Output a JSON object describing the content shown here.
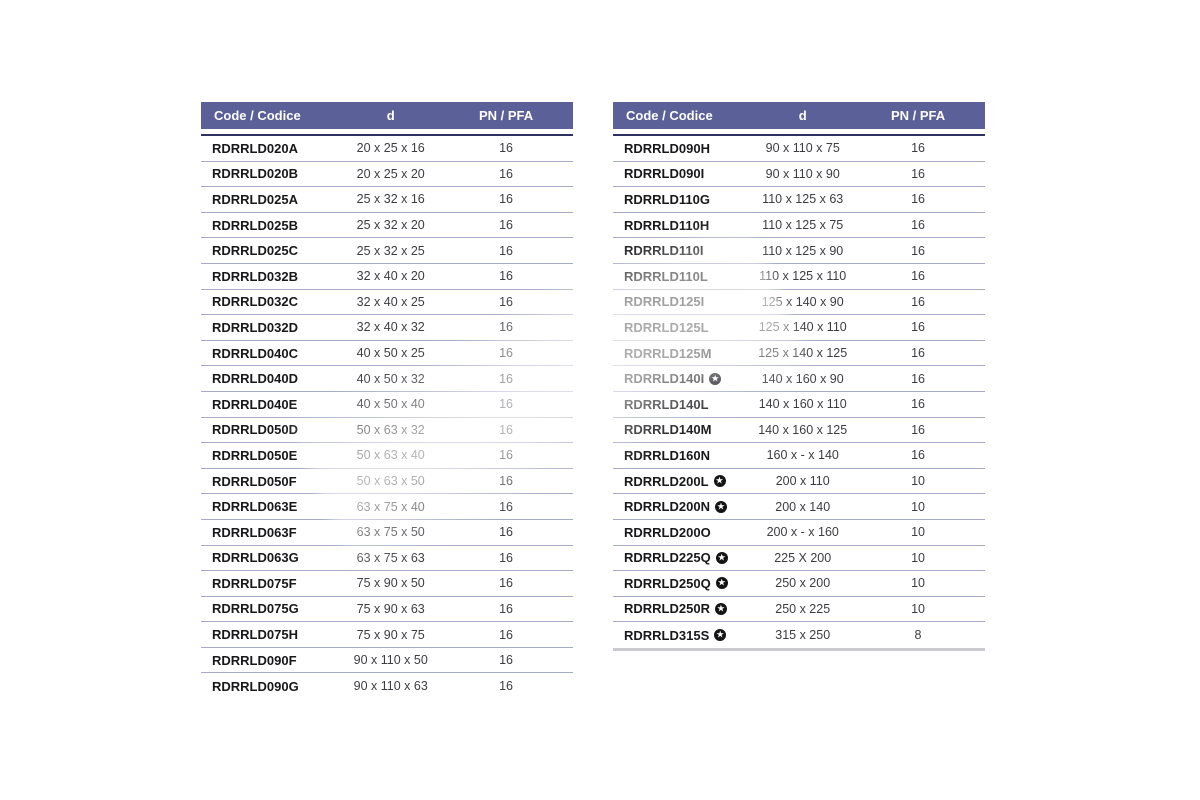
{
  "colors": {
    "header_bg": "#5b6098",
    "header_text": "#ffffff",
    "header_underline": "#2e3263",
    "row_divider": "#a6a9c8",
    "code_text": "#18181b",
    "value_text": "#3c3c42",
    "table_end_bar": "#c9c9ce",
    "star_icon_bg": "#141417"
  },
  "icons": {
    "star": "★"
  },
  "tables": [
    {
      "headers": {
        "code": "Code / Codice",
        "d": "d",
        "pn": "PN / PFA"
      },
      "rows": [
        {
          "code": "RDRRLD020A",
          "star": false,
          "d": "20 x 25 x 16",
          "pn": "16"
        },
        {
          "code": "RDRRLD020B",
          "star": false,
          "d": "20 x 25 x 20",
          "pn": "16"
        },
        {
          "code": "RDRRLD025A",
          "star": false,
          "d": "25 x 32 x 16",
          "pn": "16"
        },
        {
          "code": "RDRRLD025B",
          "star": false,
          "d": "25 x 32 x 20",
          "pn": "16"
        },
        {
          "code": "RDRRLD025C",
          "star": false,
          "d": "25 x 32 x 25",
          "pn": "16"
        },
        {
          "code": "RDRRLD032B",
          "star": false,
          "d": "32 x 40 x 20",
          "pn": "16"
        },
        {
          "code": "RDRRLD032C",
          "star": false,
          "d": "32 x 40 x 25",
          "pn": "16"
        },
        {
          "code": "RDRRLD032D",
          "star": false,
          "d": "32 x 40 x 32",
          "pn": "16"
        },
        {
          "code": "RDRRLD040C",
          "star": false,
          "d": "40 x 50 x 25",
          "pn": "16"
        },
        {
          "code": "RDRRLD040D",
          "star": false,
          "d": "40 x 50 x 32",
          "pn": "16"
        },
        {
          "code": "RDRRLD040E",
          "star": false,
          "d": "40 x 50 x 40",
          "pn": "16"
        },
        {
          "code": "RDRRLD050D",
          "star": false,
          "d": "50 x 63 x 32",
          "pn": "16"
        },
        {
          "code": "RDRRLD050E",
          "star": false,
          "d": "50 x 63 x 40",
          "pn": "16"
        },
        {
          "code": "RDRRLD050F",
          "star": false,
          "d": "50 x 63 x 50",
          "pn": "16"
        },
        {
          "code": "RDRRLD063E",
          "star": false,
          "d": "63 x 75 x 40",
          "pn": "16"
        },
        {
          "code": "RDRRLD063F",
          "star": false,
          "d": "63 x 75 x 50",
          "pn": "16"
        },
        {
          "code": "RDRRLD063G",
          "star": false,
          "d": "63 x 75 x 63",
          "pn": "16"
        },
        {
          "code": "RDRRLD075F",
          "star": false,
          "d": "75 x 90 x 50",
          "pn": "16"
        },
        {
          "code": "RDRRLD075G",
          "star": false,
          "d": "75 x 90 x 63",
          "pn": "16"
        },
        {
          "code": "RDRRLD075H",
          "star": false,
          "d": "75 x 90 x 75",
          "pn": "16"
        },
        {
          "code": "RDRRLD090F",
          "star": false,
          "d": "90 x 110 x 50",
          "pn": "16"
        },
        {
          "code": "RDRRLD090G",
          "star": false,
          "d": "90 x 110 x 63",
          "pn": "16"
        }
      ],
      "end_bar": false
    },
    {
      "headers": {
        "code": "Code / Codice",
        "d": "d",
        "pn": "PN / PFA"
      },
      "rows": [
        {
          "code": "RDRRLD090H",
          "star": false,
          "d": "90 x 110 x 75",
          "pn": "16"
        },
        {
          "code": "RDRRLD090I",
          "star": false,
          "d": "90 x 110 x 90",
          "pn": "16"
        },
        {
          "code": "RDRRLD110G",
          "star": false,
          "d": "110 x 125 x 63",
          "pn": "16"
        },
        {
          "code": "RDRRLD110H",
          "star": false,
          "d": "110 x 125 x 75",
          "pn": "16"
        },
        {
          "code": "RDRRLD110I",
          "star": false,
          "d": "110 x 125 x 90",
          "pn": "16"
        },
        {
          "code": "RDRRLD110L",
          "star": false,
          "d": "110 x 125 x 110",
          "pn": "16"
        },
        {
          "code": "RDRRLD125I",
          "star": false,
          "d": "125 x 140 x 90",
          "pn": "16"
        },
        {
          "code": "RDRRLD125L",
          "star": false,
          "d": "125 x 140 x 110",
          "pn": "16"
        },
        {
          "code": "RDRRLD125M",
          "star": false,
          "d": "125 x 140 x 125",
          "pn": "16"
        },
        {
          "code": "RDRRLD140I",
          "star": true,
          "d": "140 x 160 x 90",
          "pn": "16"
        },
        {
          "code": "RDRRLD140L",
          "star": false,
          "d": "140 x 160 x 110",
          "pn": "16"
        },
        {
          "code": "RDRRLD140M",
          "star": false,
          "d": "140 x 160 x 125",
          "pn": "16"
        },
        {
          "code": "RDRRLD160N",
          "star": false,
          "d": "160 x - x 140",
          "pn": "16"
        },
        {
          "code": "RDRRLD200L",
          "star": true,
          "d": "200 x 110",
          "pn": "10"
        },
        {
          "code": "RDRRLD200N",
          "star": true,
          "d": "200 x 140",
          "pn": "10"
        },
        {
          "code": "RDRRLD200O",
          "star": false,
          "d": "200 x - x 160",
          "pn": "10"
        },
        {
          "code": "RDRRLD225Q",
          "star": true,
          "d": "225 X 200",
          "pn": "10"
        },
        {
          "code": "RDRRLD250Q",
          "star": true,
          "d": "250 x 200",
          "pn": "10"
        },
        {
          "code": "RDRRLD250R",
          "star": true,
          "d": "250 x 225",
          "pn": "10"
        },
        {
          "code": "RDRRLD315S",
          "star": true,
          "d": "315 x 250",
          "pn": "8"
        }
      ],
      "end_bar": true
    }
  ]
}
